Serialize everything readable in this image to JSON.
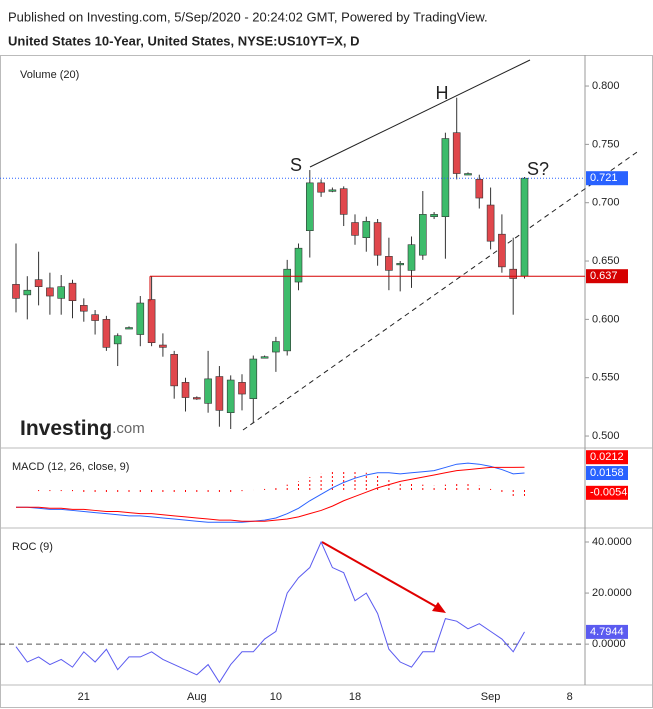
{
  "header": {
    "published": "Published on Investing.com, 5/Sep/2020 - 20:24:02 GMT, Powered by TradingView.",
    "symbol": "United States 10-Year, United States, NYSE:US10YT=X, D"
  },
  "logo": {
    "name": "Investing",
    "suffix": ".com"
  },
  "chart_data": [
    {
      "type": "candlestick",
      "label": "Volume (20)",
      "categories": [
        null,
        null,
        null,
        null,
        null,
        null,
        "21",
        null,
        null,
        null,
        null,
        null,
        null,
        null,
        null,
        null,
        "Aug",
        null,
        null,
        null,
        null,
        null,
        null,
        "10",
        null,
        null,
        null,
        null,
        null,
        null,
        "18",
        null,
        null,
        null,
        null,
        null,
        null,
        null,
        null,
        null,
        null,
        null,
        "Sep",
        null,
        null,
        null,
        null,
        null,
        null,
        "8"
      ],
      "open": [
        0.63,
        0.621,
        0.634,
        0.627,
        0.618,
        0.631,
        0.612,
        0.604,
        0.6,
        0.579,
        0.593,
        0.587,
        0.617,
        0.578,
        0.57,
        0.546,
        0.533,
        0.528,
        0.551,
        0.52,
        0.546,
        0.532,
        0.568,
        0.572,
        0.573,
        0.632,
        0.676,
        0.717,
        0.711,
        0.712,
        0.683,
        0.67,
        0.683,
        0.654,
        0.648,
        0.642,
        0.655,
        0.688,
        0.688,
        0.76,
        0.725,
        0.72,
        0.698,
        0.673,
        0.643,
        0.637,
        null,
        null,
        null,
        null
      ],
      "high": [
        0.665,
        0.637,
        0.658,
        0.64,
        0.638,
        0.634,
        0.618,
        0.608,
        0.603,
        0.588,
        0.594,
        0.62,
        0.637,
        0.588,
        0.573,
        0.55,
        0.534,
        0.573,
        0.56,
        0.552,
        0.553,
        0.569,
        0.569,
        0.585,
        0.651,
        0.665,
        0.728,
        0.72,
        0.713,
        0.714,
        0.69,
        0.688,
        0.686,
        0.67,
        0.65,
        0.671,
        0.71,
        0.692,
        0.76,
        0.79,
        0.726,
        0.724,
        0.713,
        0.69,
        0.67,
        0.722,
        null,
        null,
        null,
        null
      ],
      "low": [
        0.606,
        0.6,
        0.612,
        0.604,
        0.604,
        0.601,
        0.598,
        0.587,
        0.573,
        0.56,
        0.592,
        0.577,
        0.577,
        0.568,
        0.532,
        0.521,
        0.531,
        0.52,
        0.508,
        0.506,
        0.522,
        0.511,
        0.567,
        0.555,
        0.569,
        0.625,
        0.653,
        0.705,
        0.709,
        0.68,
        0.664,
        0.658,
        0.646,
        0.625,
        0.624,
        0.627,
        0.651,
        0.686,
        0.652,
        0.72,
        0.724,
        0.695,
        0.66,
        0.64,
        0.604,
        0.635,
        null,
        null,
        null,
        null
      ],
      "close": [
        0.618,
        0.625,
        0.628,
        0.62,
        0.628,
        0.616,
        0.607,
        0.599,
        0.576,
        0.586,
        0.593,
        0.614,
        0.58,
        0.576,
        0.543,
        0.533,
        0.532,
        0.549,
        0.522,
        0.548,
        0.536,
        0.566,
        0.568,
        0.581,
        0.643,
        0.661,
        0.717,
        0.709,
        0.711,
        0.69,
        0.672,
        0.684,
        0.655,
        0.642,
        0.648,
        0.664,
        0.69,
        0.69,
        0.755,
        0.725,
        0.725,
        0.704,
        0.667,
        0.645,
        0.635,
        0.721,
        null,
        null,
        null,
        null
      ],
      "up_color": "#3dbb6b",
      "down_color": "#e0474c",
      "last_price_color": "#2962ff",
      "level": {
        "value": 0.637,
        "color": "#d50000"
      },
      "annotations": [
        "S",
        "H",
        "S?"
      ],
      "ylim": [
        0.4906,
        0.8266
      ],
      "yticks": [
        {
          "value": 0.8,
          "label": "0.800"
        },
        {
          "value": 0.75,
          "label": "0.750"
        },
        {
          "value": 0.7,
          "label": "0.700"
        },
        {
          "value": 0.65,
          "label": "0.650"
        },
        {
          "value": 0.6,
          "label": "0.600"
        },
        {
          "value": 0.55,
          "label": "0.550"
        },
        {
          "value": 0.5,
          "label": "0.500"
        }
      ]
    },
    {
      "type": "macd",
      "label": "MACD (12, 26, close, 9)",
      "series": [
        {
          "color": "#2962ff",
          "values": [
            -0.016,
            -0.016,
            -0.017,
            -0.018,
            -0.018,
            -0.019,
            -0.02,
            -0.021,
            -0.022,
            -0.023,
            -0.024,
            -0.024,
            -0.025,
            -0.026,
            -0.027,
            -0.028,
            -0.029,
            -0.03,
            -0.03,
            -0.03,
            -0.03,
            -0.029,
            -0.028,
            -0.026,
            -0.022,
            -0.017,
            -0.01,
            -0.004,
            0.002,
            0.007,
            0.011,
            0.014,
            0.016,
            0.016,
            0.015,
            0.016,
            0.017,
            0.018,
            0.021,
            0.024,
            0.025,
            0.024,
            0.022,
            0.019,
            0.015,
            0.0158
          ]
        },
        {
          "color": "#ff0000",
          "values": [
            -0.016,
            -0.016,
            -0.016,
            -0.017,
            -0.017,
            -0.018,
            -0.018,
            -0.019,
            -0.02,
            -0.02,
            -0.021,
            -0.022,
            -0.022,
            -0.023,
            -0.024,
            -0.025,
            -0.026,
            -0.027,
            -0.028,
            -0.028,
            -0.029,
            -0.029,
            -0.029,
            -0.028,
            -0.027,
            -0.025,
            -0.022,
            -0.019,
            -0.015,
            -0.01,
            -0.006,
            -0.002,
            0.002,
            0.005,
            0.008,
            0.01,
            0.012,
            0.014,
            0.016,
            0.018,
            0.019,
            0.02,
            0.021,
            0.021,
            0.021,
            0.0212
          ]
        }
      ],
      "histogram": {
        "color": "#ff0000",
        "values": [
          0,
          0,
          -0.001,
          -0.001,
          -0.001,
          -0.001,
          -0.002,
          -0.002,
          -0.002,
          -0.003,
          -0.003,
          -0.002,
          -0.003,
          -0.003,
          -0.003,
          -0.003,
          -0.003,
          -0.003,
          -0.002,
          -0.002,
          -0.001,
          0,
          0.001,
          0.002,
          0.005,
          0.008,
          0.012,
          0.015,
          0.017,
          0.017,
          0.017,
          0.016,
          0.014,
          0.011,
          0.007,
          0.006,
          0.005,
          0.004,
          0.005,
          0.006,
          0.006,
          0.004,
          0.001,
          -0.002,
          -0.006,
          -0.0054
        ]
      },
      "ylim": [
        -0.0344,
        0.0372
      ]
    },
    {
      "type": "line",
      "label": "ROC (9)",
      "series": [
        {
          "color": "#5b5bf0",
          "values": [
            -1,
            -7,
            -5,
            -8,
            -6,
            -9,
            -3,
            -7,
            -2,
            -10,
            -5,
            -5,
            -3,
            -6,
            -8,
            -10,
            -12,
            -8,
            -15,
            -8,
            -3,
            -3,
            2,
            5,
            20,
            26,
            30,
            40,
            30,
            28,
            17,
            20,
            12,
            -2,
            -7,
            -9,
            -3,
            -3,
            10,
            9,
            6,
            8,
            5,
            2,
            -3,
            4.7944
          ]
        }
      ],
      "ylim": [
        -16,
        44.7
      ],
      "yticks": [
        {
          "value": 40,
          "label": "40.0000"
        },
        {
          "value": 20,
          "label": "20.0000"
        },
        {
          "value": 0,
          "label": "0.0000"
        }
      ]
    }
  ]
}
